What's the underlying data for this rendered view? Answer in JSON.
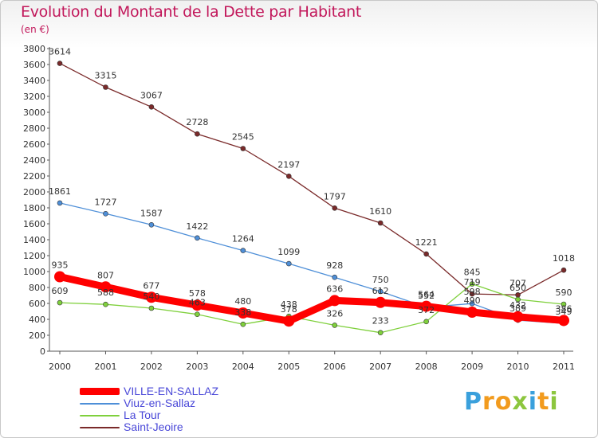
{
  "chart_data": {
    "type": "line",
    "title": "Evolution du Montant de la Dette par Habitant",
    "subtitle": "(en €)",
    "x": [
      "2000",
      "2001",
      "2002",
      "2003",
      "2004",
      "2005",
      "2006",
      "2007",
      "2008",
      "2009",
      "2010",
      "2011"
    ],
    "ylim": [
      0,
      3800
    ],
    "yticks": [
      0,
      200,
      400,
      600,
      800,
      1000,
      1200,
      1400,
      1600,
      1800,
      2000,
      2200,
      2400,
      2600,
      2800,
      3000,
      3200,
      3400,
      3600,
      3800
    ],
    "grid": false,
    "legend_position": "bottom-left",
    "series": [
      {
        "name": "VILLE-EN-SALLAZ",
        "color": "#ff0000",
        "values": [
          935,
          807,
          677,
          578,
          480,
          378,
          636,
          612,
          564,
          490,
          432,
          386
        ]
      },
      {
        "name": "Viuz-en-Sallaz",
        "color": "#4e8fd8",
        "values": [
          1861,
          1727,
          1587,
          1422,
          1264,
          1099,
          928,
          750,
          552,
          598,
          389,
          349
        ]
      },
      {
        "name": "La Tour",
        "color": "#7fd03c",
        "values": [
          609,
          588,
          540,
          463,
          338,
          438,
          326,
          233,
          372,
          845,
          650,
          590
        ]
      },
      {
        "name": "Saint-Jeoire",
        "color": "#7a2a2a",
        "values": [
          3614,
          3315,
          3067,
          2728,
          2545,
          2197,
          1797,
          1610,
          1221,
          719,
          707,
          1018
        ]
      }
    ]
  },
  "brand": {
    "letters": [
      "P",
      "r",
      "o",
      "x",
      "i",
      "t",
      "i"
    ],
    "colors": [
      "#3aa0dc",
      "#f29b1e",
      "#f29b1e",
      "#8cc63e",
      "#3aa0dc",
      "#f29b1e",
      "#8cc63e"
    ]
  }
}
